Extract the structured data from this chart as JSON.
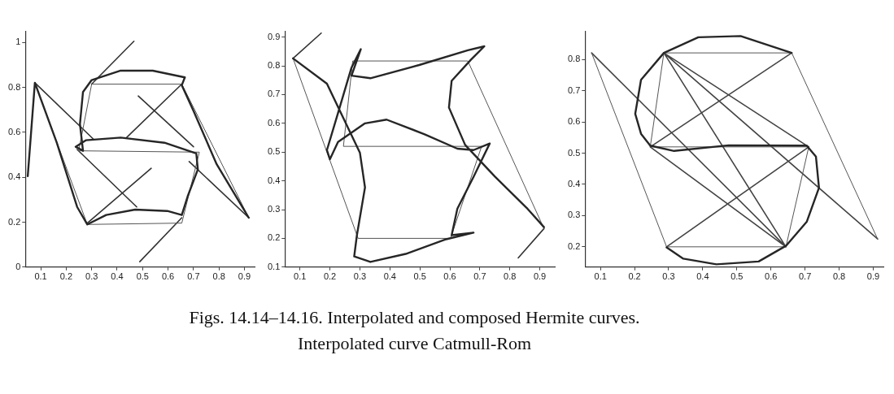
{
  "chart_data": [
    {
      "type": "line",
      "xlim": [
        0.04,
        0.94
      ],
      "ylim": [
        0,
        1.05
      ],
      "xticks": [
        0.1,
        0.2,
        0.3,
        0.4,
        0.5,
        0.6,
        0.7,
        0.8,
        0.9
      ],
      "yticks": [
        0,
        0.2,
        0.4,
        0.6,
        0.8,
        1
      ],
      "grid": false,
      "legend": false,
      "series": [
        {
          "color": "#262626",
          "x": [
            0.049,
            0.077,
            0.163,
            0.243,
            0.283,
            0.357,
            0.471,
            0.597,
            0.654,
            0.677,
            0.717,
            0.711,
            0.586,
            0.414,
            0.277,
            0.237,
            0.266,
            0.254,
            0.266,
            0.3,
            0.414,
            0.54,
            0.666,
            0.654,
            0.7,
            0.791,
            0.917
          ],
          "values": [
            0.405,
            0.821,
            0.554,
            0.268,
            0.19,
            0.232,
            0.256,
            0.25,
            0.232,
            0.315,
            0.435,
            0.506,
            0.554,
            0.577,
            0.565,
            0.536,
            0.518,
            0.637,
            0.78,
            0.833,
            0.875,
            0.875,
            0.845,
            0.81,
            0.696,
            0.458,
            0.22
          ]
        },
        {
          "color": "#555555",
          "x": [
            0.077,
            0.283,
            0.654,
            0.723,
            0.249,
            0.3,
            0.654,
            0.917
          ],
          "values": [
            0.82,
            0.19,
            0.196,
            0.512,
            0.518,
            0.815,
            0.815,
            0.22
          ]
        },
        {
          "color": "#333333",
          "x": [
            0.3,
            0.466,
            null,
            0.654,
            0.437,
            null,
            0.483,
            0.7,
            null,
            0.077,
            0.306,
            null,
            0.243,
            0.477,
            null,
            0.283,
            0.534,
            null,
            0.654,
            0.489,
            null,
            0.683,
            0.917
          ],
          "values": [
            0.815,
            1.006,
            null,
            0.815,
            0.577,
            null,
            0.762,
            0.536,
            null,
            0.821,
            0.571,
            null,
            0.524,
            0.268,
            null,
            0.196,
            0.44,
            null,
            0.22,
            0.024,
            null,
            0.47,
            0.22
          ]
        }
      ]
    },
    {
      "type": "line",
      "xlim": [
        0.05,
        0.95
      ],
      "ylim": [
        0.1,
        0.92
      ],
      "xticks": [
        0.1,
        0.2,
        0.3,
        0.4,
        0.5,
        0.6,
        0.7,
        0.8,
        0.9
      ],
      "yticks": [
        0.1,
        0.2,
        0.3,
        0.4,
        0.5,
        0.6,
        0.7,
        0.8,
        0.9
      ],
      "grid": false,
      "legend": false,
      "annotations": [
        "Figs. 14.14–14.16. Interpolated and composed Hermite curves.",
        "Interpolated curve Catmull-Rom"
      ],
      "series": [
        {
          "color": "#262626",
          "x": [
            0.077,
            0.19,
            0.245,
            0.3,
            0.317,
            0.29,
            0.281,
            0.335,
            0.453,
            0.588,
            0.679,
            0.606,
            0.625,
            0.679,
            0.733,
            0.679,
            0.625,
            0.516,
            0.389,
            0.317,
            0.227,
            0.2,
            0.19,
            0.227,
            0.272,
            0.303,
            0.272,
            0.335,
            0.498,
            0.66,
            0.715,
            0.67,
            0.606,
            0.597,
            0.651,
            0.751,
            0.859,
            0.914
          ],
          "values": [
            0.826,
            0.738,
            0.618,
            0.498,
            0.377,
            0.211,
            0.137,
            0.118,
            0.146,
            0.197,
            0.22,
            0.211,
            0.303,
            0.414,
            0.53,
            0.507,
            0.512,
            0.562,
            0.613,
            0.6,
            0.535,
            0.475,
            0.507,
            0.636,
            0.794,
            0.858,
            0.766,
            0.757,
            0.803,
            0.854,
            0.868,
            0.821,
            0.748,
            0.655,
            0.525,
            0.414,
            0.303,
            0.239
          ]
        },
        {
          "color": "#555555",
          "x": [
            0.077,
            0.294,
            0.602,
            0.706,
            0.245,
            0.276,
            0.66,
            0.914
          ],
          "values": [
            0.826,
            0.2,
            0.2,
            0.52,
            0.52,
            0.817,
            0.817,
            0.234
          ]
        },
        {
          "color": "#333333",
          "x": [
            0.077,
            0.171,
            null,
            0.914,
            0.828
          ],
          "values": [
            0.826,
            0.914,
            null,
            0.234,
            0.132
          ]
        }
      ]
    },
    {
      "type": "line",
      "xlim": [
        0.055,
        0.93
      ],
      "ylim": [
        0.135,
        0.89
      ],
      "xticks": [
        0.1,
        0.2,
        0.3,
        0.4,
        0.5,
        0.6,
        0.7,
        0.8,
        0.9
      ],
      "yticks": [
        0.2,
        0.3,
        0.4,
        0.5,
        0.6,
        0.7,
        0.8
      ],
      "grid": false,
      "legend": false,
      "series": [
        {
          "color": "#262626",
          "x": [
            0.294,
            0.343,
            0.44,
            0.564,
            0.644,
            0.705,
            0.741,
            0.732,
            0.705,
            0.476,
            0.316,
            0.246,
            0.219,
            0.202,
            0.219,
            0.286,
            0.387,
            0.511,
            0.661
          ],
          "values": [
            0.198,
            0.162,
            0.144,
            0.153,
            0.203,
            0.28,
            0.389,
            0.489,
            0.524,
            0.525,
            0.507,
            0.524,
            0.562,
            0.626,
            0.735,
            0.821,
            0.871,
            0.875,
            0.821
          ]
        },
        {
          "color": "#555555",
          "x": [
            0.074,
            0.294,
            0.644,
            0.711,
            0.246,
            0.286,
            0.661,
            0.913
          ],
          "values": [
            0.821,
            0.2,
            0.2,
            0.52,
            0.52,
            0.821,
            0.821,
            0.225
          ]
        },
        {
          "color": "#444444",
          "x": [
            0.074,
            0.644,
            null,
            0.286,
            0.711,
            null,
            0.286,
            0.644,
            null,
            0.661,
            0.246,
            null,
            0.246,
            0.644,
            null,
            0.294,
            0.711,
            null,
            0.286,
            0.913
          ],
          "values": [
            0.821,
            0.2,
            null,
            0.821,
            0.52,
            null,
            0.821,
            0.2,
            null,
            0.821,
            0.52,
            null,
            0.52,
            0.2,
            null,
            0.2,
            0.52,
            null,
            0.821,
            0.225
          ]
        }
      ]
    }
  ]
}
